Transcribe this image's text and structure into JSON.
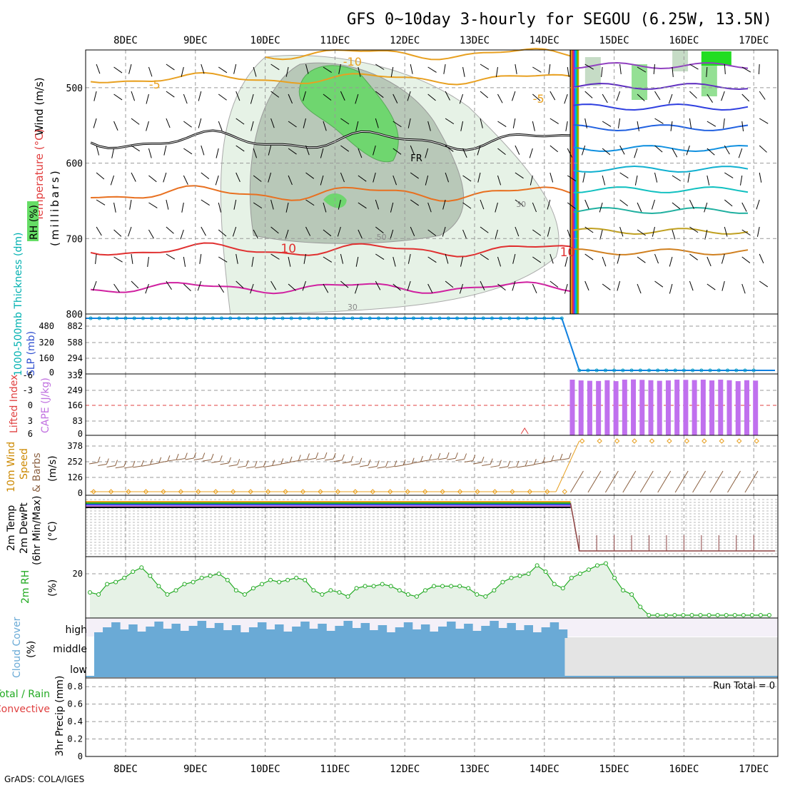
{
  "title": "GFS 0~10day 3-hourly for SEGOU (6.25W, 13.5N)",
  "credit": "GrADS: COLA/IGES",
  "x_axis": {
    "days": [
      "8DEC",
      "9DEC",
      "10DEC",
      "11DEC",
      "12DEC",
      "13DEC",
      "14DEC",
      "15DEC",
      "16DEC",
      "17DEC"
    ]
  },
  "panel_labels": {
    "upper": {
      "wind": "Wind (m/s)",
      "temperature": "Temperature (°C)",
      "rh": "RH (%)",
      "unit": "(millibars)"
    },
    "slp": {
      "thickness": "1000-500mb Thickness (dm)",
      "slp": "SLP (mb)"
    },
    "cape": {
      "lifted_index": "Lifted Index",
      "cape": "CAPE (J/kg)"
    },
    "wind10": {
      "line1": "10m Wind",
      "line2": "Speed",
      "line3": "& Barbs",
      "unit": "(m/s)"
    },
    "temp2m": {
      "line1": "2m Temp",
      "line2": "2m DewPt",
      "line3": "(6hr Min/Max)",
      "unit": "(°C)"
    },
    "rh2m": {
      "label": "2m RH",
      "unit": "(%)"
    },
    "cloud": {
      "label": "Cloud Cover",
      "unit": "(%)",
      "levels": [
        "high",
        "middle",
        "low"
      ]
    },
    "precip": {
      "line1": "Total / Rain",
      "line2": "Convective",
      "line3": "3hr Precip (mm)",
      "run_total": "Run Total = 0"
    }
  },
  "colors": {
    "temp_label": "#e24040",
    "wind_label": "#cc8800",
    "rh_label": "#22aa22",
    "thickness_label": "#00b0b0",
    "slp_label": "#3050d0",
    "cape_label": "#c070e0",
    "li_label": "#e04040",
    "cloud_label": "#6aaad6",
    "precip_total": "#22aa22",
    "precip_conv": "#e04040"
  },
  "chart_data": [
    {
      "type": "contour",
      "name": "upper-air cross section",
      "y_ticks": [
        500,
        600,
        700,
        800
      ],
      "ylim": [
        800,
        450
      ],
      "contour_labels": [
        "-10",
        "-5",
        "-5",
        "FR",
        "10",
        "10",
        "50",
        "30",
        "30"
      ],
      "grid": true
    },
    {
      "type": "line",
      "name": "SLP and thickness",
      "y_ticks_left": [
        "0",
        "160",
        "320",
        "480"
      ],
      "y_ticks_right": [
        "0",
        "294",
        "588",
        "882"
      ],
      "x": [
        "8DEC 00",
        "14DEC 12",
        "14DEC 18",
        "17DEC 06"
      ],
      "series": [
        {
          "values": [
            900,
            900,
            0,
            0
          ]
        }
      ]
    },
    {
      "type": "bar",
      "name": "CAPE and Lifted Index",
      "y_ticks_left": [
        "6",
        "3",
        "0",
        "-3",
        "-6"
      ],
      "y_ticks_right": [
        "0",
        "83",
        "166",
        "249",
        "332"
      ],
      "cape_start_index": 0,
      "cape_values": [
        301,
        297,
        295,
        294,
        298,
        293,
        301,
        302,
        300,
        298,
        295,
        297,
        301,
        300,
        299,
        301,
        297,
        301,
        298,
        293,
        298,
        296
      ],
      "zero_line": 166
    },
    {
      "type": "line",
      "name": "10m Wind Speed",
      "y_ticks": [
        "0",
        "126",
        "252",
        "378"
      ],
      "speed_before": 0,
      "speed_after": 378
    },
    {
      "type": "line",
      "name": "2m Temp / DewPt",
      "note_values_before": "high band",
      "note_values_after": "low band"
    },
    {
      "type": "line",
      "name": "2m RH",
      "y_ticks": [
        "20"
      ],
      "x_step_hours": 3,
      "values": [
        11,
        10,
        15,
        16,
        18,
        21,
        23,
        19,
        14,
        10,
        12,
        15,
        16,
        18,
        19,
        20,
        17,
        12,
        10,
        13,
        15,
        17,
        16,
        17,
        18,
        17,
        12,
        10,
        12,
        11,
        9,
        13,
        14,
        14,
        15,
        14,
        12,
        10,
        9,
        12,
        14,
        14,
        14,
        14,
        13,
        10,
        9,
        12,
        16,
        18,
        19,
        20,
        24,
        21,
        15,
        13,
        18,
        20,
        22,
        24,
        25,
        18,
        12,
        10,
        4,
        0,
        0,
        0,
        0,
        0,
        0,
        0,
        0,
        0,
        0,
        0,
        0,
        0,
        0,
        0,
        0,
        0
      ]
    },
    {
      "type": "area",
      "name": "Cloud Cover",
      "categories": [
        "high",
        "middle",
        "low"
      ]
    },
    {
      "type": "bar",
      "name": "3hr Precip",
      "y_ticks": [
        "0",
        "0.2",
        "0.4",
        "0.6",
        "0.8"
      ],
      "ylim": [
        0,
        0.9
      ],
      "values": []
    }
  ]
}
